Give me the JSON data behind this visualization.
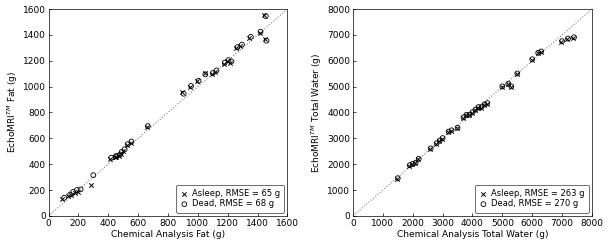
{
  "fat_asleep_x": [
    90,
    130,
    150,
    175,
    195,
    285,
    415,
    445,
    455,
    475,
    485,
    500,
    525,
    550,
    660,
    895,
    950,
    995,
    1045,
    1095,
    1115,
    1175,
    1195,
    1215,
    1255,
    1285,
    1345,
    1415,
    1445,
    1450
  ],
  "fat_asleep_y": [
    130,
    150,
    165,
    175,
    185,
    240,
    440,
    455,
    455,
    465,
    480,
    505,
    545,
    565,
    685,
    955,
    1000,
    1045,
    1105,
    1095,
    1115,
    1175,
    1195,
    1185,
    1295,
    1315,
    1375,
    1415,
    1555,
    1365
  ],
  "fat_dead_x": [
    105,
    145,
    165,
    190,
    215,
    300,
    420,
    450,
    460,
    480,
    490,
    510,
    530,
    555,
    665,
    905,
    955,
    1005,
    1050,
    1100,
    1125,
    1180,
    1205,
    1225,
    1265,
    1295,
    1355,
    1420,
    1455,
    1460
  ],
  "fat_dead_y": [
    140,
    165,
    185,
    200,
    205,
    315,
    450,
    460,
    465,
    475,
    495,
    515,
    555,
    575,
    695,
    945,
    1005,
    1045,
    1095,
    1105,
    1125,
    1185,
    1205,
    1195,
    1305,
    1325,
    1385,
    1425,
    1545,
    1355
  ],
  "water_asleep_x": [
    1480,
    1880,
    1980,
    2080,
    2180,
    2580,
    2780,
    2880,
    2980,
    3180,
    3280,
    3480,
    3680,
    3780,
    3880,
    3980,
    4080,
    4180,
    4280,
    4380,
    4480,
    4980,
    5180,
    5280,
    5480,
    5980,
    6180,
    6280,
    6980,
    7180,
    7380
  ],
  "water_asleep_y": [
    1440,
    1940,
    1990,
    2040,
    2190,
    2590,
    2790,
    2890,
    2990,
    3240,
    3290,
    3390,
    3790,
    3890,
    3890,
    3990,
    4090,
    4190,
    4190,
    4290,
    4340,
    4990,
    5090,
    4990,
    5490,
    6040,
    6290,
    6340,
    6740,
    6840,
    6890
  ],
  "water_dead_x": [
    1500,
    1900,
    2000,
    2100,
    2200,
    2600,
    2800,
    2900,
    3000,
    3200,
    3300,
    3500,
    3700,
    3800,
    3900,
    4000,
    4100,
    4200,
    4300,
    4400,
    4500,
    5000,
    5200,
    5300,
    5500,
    6000,
    6200,
    6300,
    7000,
    7200,
    7400
  ],
  "water_dead_y": [
    1460,
    1960,
    2010,
    2060,
    2210,
    2610,
    2810,
    2910,
    3010,
    3260,
    3310,
    3410,
    3810,
    3910,
    3910,
    4010,
    4110,
    4210,
    4210,
    4310,
    4360,
    5010,
    5110,
    5010,
    5510,
    6060,
    6310,
    6360,
    6760,
    6860,
    6910
  ],
  "fat_xlim": [
    0,
    1600
  ],
  "fat_ylim": [
    0,
    1600
  ],
  "fat_xticks": [
    0,
    200,
    400,
    600,
    800,
    1000,
    1200,
    1400,
    1600
  ],
  "fat_yticks": [
    0,
    200,
    400,
    600,
    800,
    1000,
    1200,
    1400,
    1600
  ],
  "water_xlim": [
    0,
    8000
  ],
  "water_ylim": [
    0,
    8000
  ],
  "water_xticks": [
    0,
    1000,
    2000,
    3000,
    4000,
    5000,
    6000,
    7000,
    8000
  ],
  "water_yticks": [
    0,
    1000,
    2000,
    3000,
    4000,
    5000,
    6000,
    7000,
    8000
  ],
  "fat_xlabel": "Chemical Analysis Fat (g)",
  "fat_ylabel": "EchoMRI$^{TM}$ Fat (g)",
  "water_xlabel": "Chemical Analysis Total Water (g)",
  "water_ylabel": "EchoMRI$^{TM}$ Total Water (g)",
  "legend1_asleep": "Asleep, RMSE = 65 g",
  "legend1_dead": "Dead, RMSE = 68 g",
  "legend2_asleep": "Asleep, RMSE = 263 g",
  "legend2_dead": "Dead, RMSE = 270 g",
  "marker_color": "black",
  "bg_color": "white",
  "font_size": 6.5
}
